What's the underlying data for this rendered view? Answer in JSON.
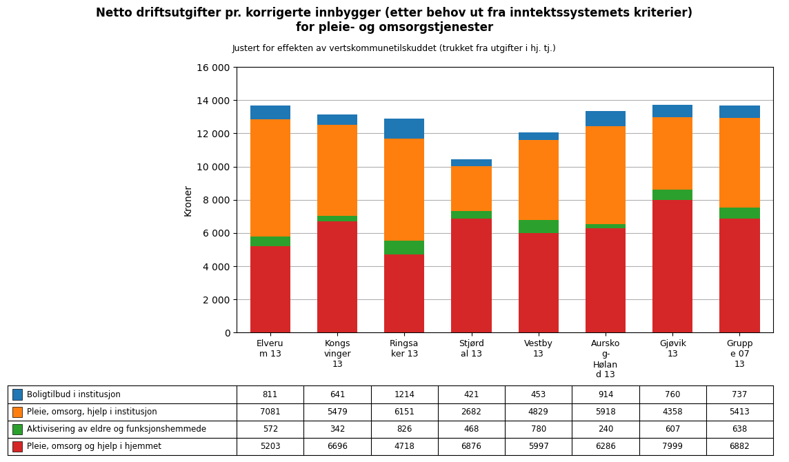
{
  "chart_data": {
    "type": "bar",
    "title": "Netto driftsutgifter pr. korrigerte innbygger (etter behov ut fra inntektssystemets kriterier)\nfor pleie- og omsorgstjenester",
    "subtitle": "Justert for effekten av vertskommunetilskuddet (trukket fra utgifter i hj. tj.)",
    "y_label": "Kroner",
    "categories": [
      "Elveru\nm 13",
      "Kongs\nvinger\n13",
      "Ringsa\nker 13",
      "Stjørd\nal 13",
      "Vestby\n13",
      "Aursko\ng-\nHølan\nd 13",
      "Gjøvik\n13",
      "Grupp\ne 07\n13"
    ],
    "series": [
      {
        "name": "Boligtilbud i institusjon",
        "values": [
          811,
          641,
          1214,
          421,
          453,
          914,
          760,
          737
        ]
      },
      {
        "name": "Pleie, omsorg, hjelp i institusjon",
        "values": [
          7081,
          5479,
          6151,
          2682,
          4829,
          5918,
          4358,
          5413
        ]
      },
      {
        "name": "Aktivisering av eldre og funksjonshemmede",
        "values": [
          572,
          342,
          826,
          468,
          780,
          240,
          607,
          638
        ]
      },
      {
        "name": "Pleie, omsorg og hjelp i hjemmet",
        "values": [
          5203,
          6696,
          4718,
          6876,
          5997,
          6286,
          7999,
          6882
        ]
      }
    ],
    "stacked": true,
    "data_labels": true,
    "ylim": [
      0,
      16000
    ],
    "yticks": [
      0,
      {
        "value": 2000,
        "label": "2 000"
      },
      {
        "value": 4000,
        "label": "4 000"
      },
      {
        "value": 6000,
        "label": "6 000"
      },
      {
        "value": 8000,
        "label": "8 000"
      },
      {
        "value": 10000,
        "label": "10 000"
      },
      {
        "value": 12000,
        "label": "12 000"
      },
      {
        "value": 14000,
        "label": "14 000"
      },
      {
        "value": 16000,
        "label": "16 000"
      }
    ],
    "grid": true
  }
}
